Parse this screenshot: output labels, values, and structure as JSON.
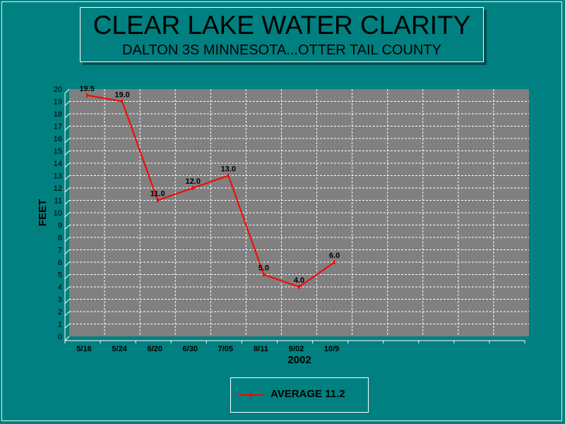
{
  "title": "CLEAR LAKE WATER CLARITY",
  "subtitle": "DALTON 3S MINNESOTA...OTTER TAIL COUNTY",
  "colors": {
    "background": "#008080",
    "plot_area": "#808080",
    "series_line": "#ff0000"
  },
  "chart_data": {
    "type": "line",
    "title": "CLEAR LAKE WATER CLARITY",
    "subtitle": "DALTON 3S MINNESOTA...OTTER TAIL COUNTY",
    "xlabel": "2002",
    "ylabel": "FEET",
    "categories": [
      "5/16",
      "5/24",
      "6/20",
      "6/30",
      "7/05",
      "8/11",
      "9/02",
      "10/9"
    ],
    "empty_slots_after": 5,
    "series": [
      {
        "name": "AVERAGE 11.2",
        "values": [
          19.5,
          19.0,
          11.0,
          12.0,
          13.0,
          5.0,
          4.0,
          6.0
        ],
        "labels": [
          "19.5",
          "19.0",
          "11.0",
          "12.0",
          "13.0",
          "5.0",
          "4.0",
          "6.0"
        ],
        "color": "#ff0000"
      }
    ],
    "ylim": [
      0,
      20
    ],
    "ytick_step": 1,
    "grid": true,
    "legend_position": "bottom"
  }
}
